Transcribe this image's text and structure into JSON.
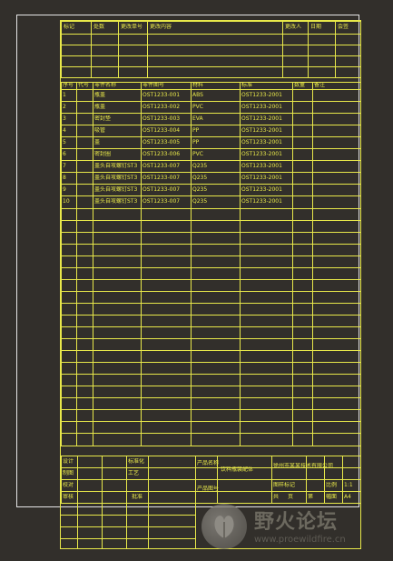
{
  "revision_header": [
    "标记",
    "处数",
    "更改单号",
    "更改内容",
    "更改人",
    "日期",
    "会签"
  ],
  "parts_header": [
    "序号",
    "代号",
    "零件名称",
    "零件图号",
    "材料",
    "标准",
    "数量",
    "备注"
  ],
  "parts_rows": [
    [
      "1",
      "",
      "瓶盖",
      "OST1233-001",
      "ABS",
      "OST1233-2001",
      "",
      ""
    ],
    [
      "2",
      "",
      "瓶盖",
      "OST1233-002",
      "PVC",
      "OST1233-2001",
      "",
      ""
    ],
    [
      "3",
      "",
      "密封垫",
      "OST1233-003",
      "EVA",
      "OST1233-2001",
      "",
      ""
    ],
    [
      "4",
      "",
      "吸管",
      "OST1233-004",
      "PP",
      "OST1233-2001",
      "",
      ""
    ],
    [
      "5",
      "",
      "盖",
      "OST1233-005",
      "PP",
      "OST1233-2001",
      "",
      ""
    ],
    [
      "6",
      "",
      "密封圈",
      "OST1233-006",
      "PVC",
      "OST1233-2001",
      "",
      ""
    ],
    [
      "7",
      "",
      "盖头自攻螺钉ST3",
      "OST1233-007",
      "Q235",
      "OST1233-2001",
      "",
      ""
    ],
    [
      "8",
      "",
      "盖头自攻螺钉ST3",
      "OST1233-007",
      "Q235",
      "OST1233-2001",
      "",
      ""
    ],
    [
      "9",
      "",
      "盖头自攻螺钉ST3",
      "OST1233-007",
      "Q235",
      "OST1233-2001",
      "",
      ""
    ],
    [
      "10",
      "",
      "盖头自攻螺钉ST3",
      "OST1233-007",
      "Q235",
      "OST1233-2001",
      "",
      ""
    ]
  ],
  "title_block": {
    "design": "设计",
    "drawing": "制图",
    "check": "校对",
    "approve": "审核",
    "standard_check": "标准化",
    "process": "工艺",
    "approval": "批准",
    "product_name_label": "产品名称",
    "product_name": "饮料瓶装配体",
    "drawing_no_label": "产品图号",
    "company": "徐州市某某技术有限公司",
    "drawing_code_label": "图样标记",
    "sheet_total": "共",
    "sheet_label": "页",
    "sheet_no": "第",
    "scale_label": "比例",
    "weight_label": "重量",
    "scale_value": "1:1",
    "format_label": "幅面",
    "format_value": "A4"
  },
  "watermark": {
    "title": "野火论坛",
    "url": "www.proewildfire.cn"
  },
  "colors": {
    "background": "#322f2b",
    "line": "#e8e84a",
    "frame": "#e6e6e6"
  }
}
